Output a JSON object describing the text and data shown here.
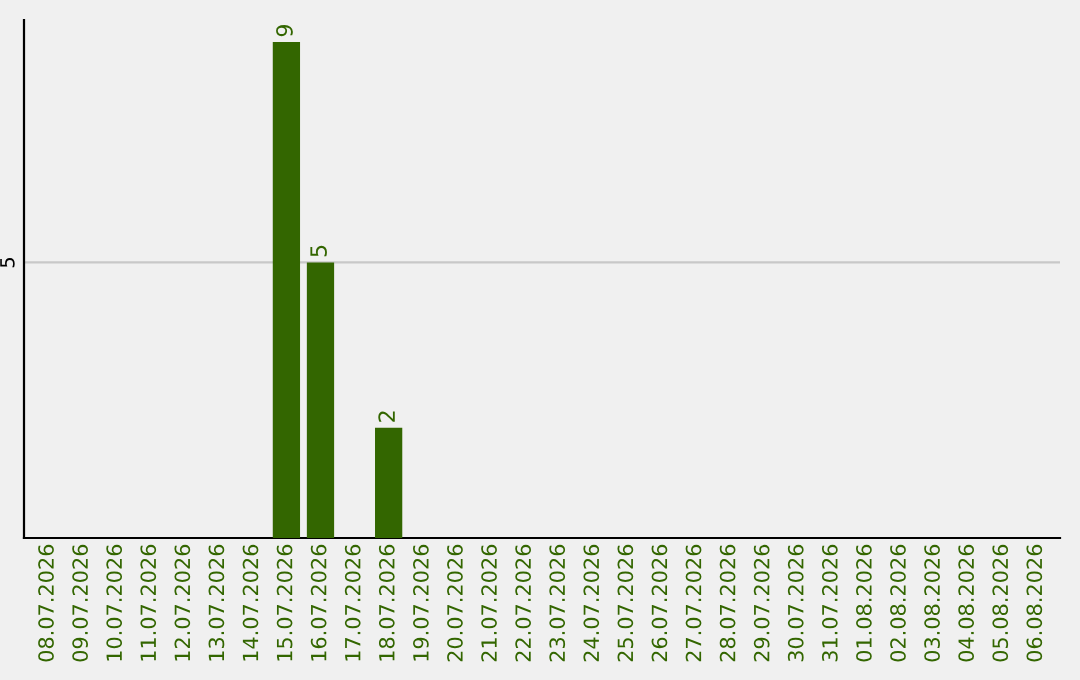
{
  "chart_data": {
    "type": "bar",
    "categories": [
      "08.07.2026",
      "09.07.2026",
      "10.07.2026",
      "11.07.2026",
      "12.07.2026",
      "13.07.2026",
      "14.07.2026",
      "15.07.2026",
      "16.07.2026",
      "17.07.2026",
      "18.07.2026",
      "19.07.2026",
      "20.07.2026",
      "21.07.2026",
      "22.07.2026",
      "23.07.2026",
      "24.07.2026",
      "25.07.2026",
      "26.07.2026",
      "27.07.2026",
      "28.07.2026",
      "29.07.2026",
      "30.07.2026",
      "31.07.2026",
      "01.08.2026",
      "02.08.2026",
      "03.08.2026",
      "04.08.2026",
      "05.08.2026",
      "06.08.2026"
    ],
    "values": [
      0,
      0,
      0,
      0,
      0,
      0,
      0,
      9,
      5,
      0,
      2,
      0,
      0,
      0,
      0,
      0,
      0,
      0,
      0,
      0,
      0,
      0,
      0,
      0,
      0,
      0,
      0,
      0,
      0,
      0
    ],
    "color": "#336600",
    "value_labels": [
      null,
      null,
      null,
      null,
      null,
      null,
      null,
      "9",
      "5",
      null,
      "2",
      null,
      null,
      null,
      null,
      null,
      null,
      null,
      null,
      null,
      null,
      null,
      null,
      null,
      null,
      null,
      null,
      null,
      null,
      null
    ],
    "ylim": [
      0,
      9.4
    ],
    "yticks": [
      5
    ],
    "grid": "y"
  }
}
